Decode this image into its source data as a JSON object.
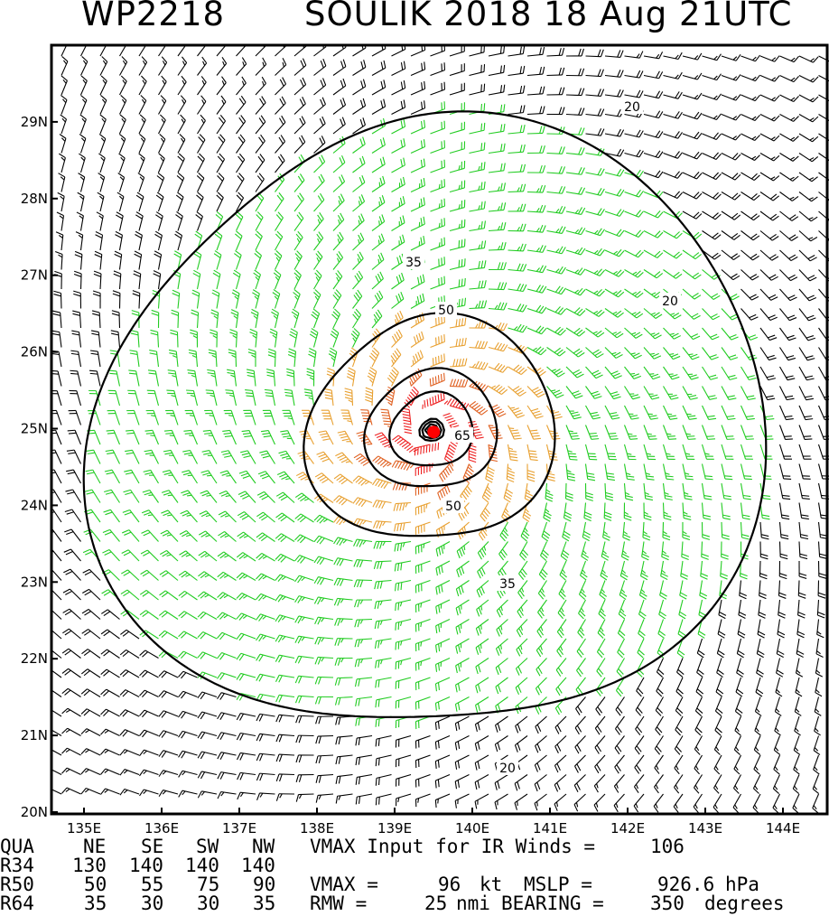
{
  "title": {
    "storm_id": "WP2218",
    "main": "SOULIK 2018 18 Aug 21UTC"
  },
  "map": {
    "lon_range": [
      134.3,
      144.7
    ],
    "lat_range": [
      20.0,
      30.0
    ],
    "lon_ticks": [
      "135E",
      "136E",
      "137E",
      "138E",
      "139E",
      "140E",
      "141E",
      "142E",
      "143E",
      "144E"
    ],
    "lat_ticks": [
      "20N",
      "21N",
      "22N",
      "23N",
      "24N",
      "25N",
      "26N",
      "27N",
      "28N",
      "29N"
    ],
    "center": {
      "lon": 139.48,
      "lat": 24.98
    },
    "contour_labels": [
      "20",
      "20",
      "20",
      "35",
      "35",
      "50",
      "50",
      "65"
    ],
    "wind_colors": {
      "lt20": "#000000",
      "lt35": "#22cc22",
      "lt50": "#e8a030",
      "lt65": "#e06020",
      "ge65": "#ee2020"
    },
    "contour_color": "#000000",
    "center_color": "#ff0000"
  },
  "table": {
    "header": [
      "QUA",
      "NE",
      "SE",
      "SW",
      "NW"
    ],
    "rows": [
      {
        "label": "R34",
        "values": [
          "130",
          "140",
          "140",
          "140"
        ]
      },
      {
        "label": "R50",
        "values": [
          "50",
          "55",
          "75",
          "90"
        ]
      },
      {
        "label": "R64",
        "values": [
          "35",
          "30",
          "30",
          "35"
        ]
      }
    ],
    "vmax_input_text": "VMAX Input for IR Winds =",
    "vmax_input_value": "106",
    "vmax_text": "VMAX =",
    "vmax_value": "96",
    "vmax_unit": "kt",
    "mslp_text": "MSLP =",
    "mslp_value": "926.6",
    "mslp_unit": "hPa",
    "rmw_text": "RMW =",
    "rmw_value": "25",
    "rmw_unit": "nmi",
    "bearing_text": "BEARING =",
    "bearing_value": "350",
    "bearing_unit": "degrees"
  }
}
